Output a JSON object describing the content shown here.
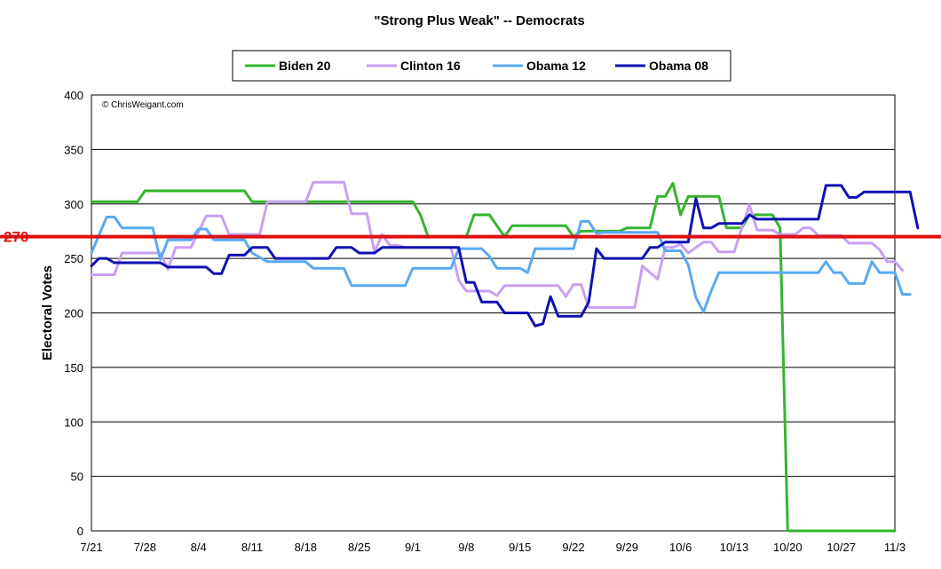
{
  "chart_data": {
    "type": "line",
    "title": "\"Strong Plus Weak\" -- Democrats",
    "ylabel": "Electoral Votes",
    "xlabel": "",
    "copyright": "© ChrisWeigant.com",
    "ylim": [
      0,
      400
    ],
    "yticks": [
      0,
      50,
      100,
      150,
      200,
      250,
      300,
      350,
      400
    ],
    "xlim": [
      0,
      105
    ],
    "xticks": [
      {
        "x": 0,
        "label": "7/21"
      },
      {
        "x": 7,
        "label": "7/28"
      },
      {
        "x": 14,
        "label": "8/4"
      },
      {
        "x": 21,
        "label": "8/11"
      },
      {
        "x": 28,
        "label": "8/18"
      },
      {
        "x": 35,
        "label": "8/25"
      },
      {
        "x": 42,
        "label": "9/1"
      },
      {
        "x": 49,
        "label": "9/8"
      },
      {
        "x": 56,
        "label": "9/15"
      },
      {
        "x": 63,
        "label": "9/22"
      },
      {
        "x": 70,
        "label": "9/29"
      },
      {
        "x": 77,
        "label": "10/6"
      },
      {
        "x": 84,
        "label": "10/13"
      },
      {
        "x": 91,
        "label": "10/20"
      },
      {
        "x": 98,
        "label": "10/27"
      },
      {
        "x": 105,
        "label": "11/3"
      }
    ],
    "grid": true,
    "legend_position": "top",
    "reference_line": {
      "value": 270,
      "label": "270",
      "color": "#dd1111"
    },
    "series": [
      {
        "name": "Biden 20",
        "color": "#33b52e",
        "points": [
          [
            0,
            302
          ],
          [
            6,
            302
          ],
          [
            7,
            312
          ],
          [
            20,
            312
          ],
          [
            21,
            302
          ],
          [
            42,
            302
          ],
          [
            43,
            290
          ],
          [
            44,
            270
          ],
          [
            48,
            270
          ],
          [
            49,
            270
          ],
          [
            50,
            290
          ],
          [
            52,
            290
          ],
          [
            54,
            270
          ],
          [
            55,
            280
          ],
          [
            62,
            280
          ],
          [
            63,
            270
          ],
          [
            64,
            275
          ],
          [
            69,
            275
          ],
          [
            70,
            278
          ],
          [
            73,
            278
          ],
          [
            74,
            307
          ],
          [
            75,
            307
          ],
          [
            76,
            319
          ],
          [
            77,
            290
          ],
          [
            78,
            307
          ],
          [
            82,
            307
          ],
          [
            83,
            278
          ],
          [
            85,
            278
          ],
          [
            86,
            290
          ],
          [
            89,
            290
          ],
          [
            90,
            278
          ],
          [
            91,
            0
          ],
          [
            105,
            0
          ]
        ]
      },
      {
        "name": "Clinton 16",
        "color": "#c99ff2",
        "points": [
          [
            0,
            235
          ],
          [
            3,
            235
          ],
          [
            4,
            255
          ],
          [
            9,
            255
          ],
          [
            10,
            240
          ],
          [
            11,
            260
          ],
          [
            13,
            260
          ],
          [
            15,
            289
          ],
          [
            17,
            289
          ],
          [
            18,
            272
          ],
          [
            22,
            272
          ],
          [
            23,
            302
          ],
          [
            28,
            302
          ],
          [
            29,
            320
          ],
          [
            33,
            320
          ],
          [
            34,
            291
          ],
          [
            36,
            291
          ],
          [
            37,
            256
          ],
          [
            38,
            272
          ],
          [
            39,
            262
          ],
          [
            40,
            262
          ],
          [
            41,
            260
          ],
          [
            47,
            260
          ],
          [
            48,
            230
          ],
          [
            49,
            220
          ],
          [
            52,
            220
          ],
          [
            53,
            216
          ],
          [
            54,
            225
          ],
          [
            61,
            225
          ],
          [
            62,
            215
          ],
          [
            63,
            226
          ],
          [
            64,
            226
          ],
          [
            65,
            205
          ],
          [
            71,
            205
          ],
          [
            72,
            243
          ],
          [
            74,
            231
          ],
          [
            75,
            260
          ],
          [
            76,
            260
          ],
          [
            77,
            263
          ],
          [
            78,
            255
          ],
          [
            80,
            265
          ],
          [
            81,
            265
          ],
          [
            82,
            256
          ],
          [
            84,
            256
          ],
          [
            85,
            278
          ],
          [
            86,
            299
          ],
          [
            87,
            276
          ],
          [
            89,
            276
          ],
          [
            90,
            272
          ],
          [
            92,
            272
          ],
          [
            93,
            278
          ],
          [
            94,
            278
          ],
          [
            95,
            271
          ],
          [
            98,
            271
          ],
          [
            99,
            264
          ],
          [
            102,
            264
          ],
          [
            103,
            258
          ],
          [
            104,
            247
          ],
          [
            105,
            247
          ],
          [
            106,
            239
          ]
        ]
      },
      {
        "name": "Obama 12",
        "color": "#5aa9f0",
        "points": [
          [
            0,
            255
          ],
          [
            2,
            288
          ],
          [
            3,
            288
          ],
          [
            4,
            278
          ],
          [
            8,
            278
          ],
          [
            9,
            249
          ],
          [
            10,
            267
          ],
          [
            13,
            267
          ],
          [
            14,
            277
          ],
          [
            15,
            277
          ],
          [
            16,
            267
          ],
          [
            20,
            267
          ],
          [
            21,
            255
          ],
          [
            23,
            247
          ],
          [
            28,
            247
          ],
          [
            29,
            241
          ],
          [
            33,
            241
          ],
          [
            34,
            225
          ],
          [
            41,
            225
          ],
          [
            42,
            241
          ],
          [
            47,
            241
          ],
          [
            48,
            259
          ],
          [
            51,
            259
          ],
          [
            52,
            252
          ],
          [
            53,
            241
          ],
          [
            56,
            241
          ],
          [
            57,
            237
          ],
          [
            58,
            259
          ],
          [
            63,
            259
          ],
          [
            64,
            284
          ],
          [
            65,
            284
          ],
          [
            66,
            273
          ],
          [
            67,
            274
          ],
          [
            73,
            274
          ],
          [
            74,
            274
          ],
          [
            75,
            257
          ],
          [
            77,
            257
          ],
          [
            78,
            244
          ],
          [
            79,
            214
          ],
          [
            80,
            201
          ],
          [
            81,
            220
          ],
          [
            82,
            237
          ],
          [
            95,
            237
          ],
          [
            96,
            247
          ],
          [
            97,
            237
          ],
          [
            98,
            237
          ],
          [
            99,
            227
          ],
          [
            101,
            227
          ],
          [
            102,
            247
          ],
          [
            103,
            237
          ],
          [
            105,
            237
          ],
          [
            106,
            217
          ],
          [
            107,
            217
          ]
        ]
      },
      {
        "name": "Obama 08",
        "color": "#1010b4",
        "points": [
          [
            0,
            243
          ],
          [
            1,
            250
          ],
          [
            2,
            250
          ],
          [
            3,
            246
          ],
          [
            9,
            246
          ],
          [
            10,
            242
          ],
          [
            15,
            242
          ],
          [
            16,
            236
          ],
          [
            17,
            236
          ],
          [
            18,
            253
          ],
          [
            20,
            253
          ],
          [
            21,
            260
          ],
          [
            23,
            260
          ],
          [
            24,
            250
          ],
          [
            31,
            250
          ],
          [
            32,
            260
          ],
          [
            34,
            260
          ],
          [
            35,
            255
          ],
          [
            37,
            255
          ],
          [
            38,
            260
          ],
          [
            48,
            260
          ],
          [
            49,
            228
          ],
          [
            50,
            228
          ],
          [
            51,
            210
          ],
          [
            53,
            210
          ],
          [
            54,
            200
          ],
          [
            57,
            200
          ],
          [
            58,
            188
          ],
          [
            59,
            190
          ],
          [
            60,
            215
          ],
          [
            61,
            197
          ],
          [
            64,
            197
          ],
          [
            65,
            210
          ],
          [
            66,
            259
          ],
          [
            67,
            250
          ],
          [
            71,
            250
          ],
          [
            72,
            250
          ],
          [
            73,
            260
          ],
          [
            74,
            260
          ],
          [
            75,
            265
          ],
          [
            78,
            265
          ],
          [
            79,
            305
          ],
          [
            80,
            278
          ],
          [
            81,
            278
          ],
          [
            82,
            282
          ],
          [
            85,
            282
          ],
          [
            86,
            290
          ],
          [
            87,
            286
          ],
          [
            95,
            286
          ],
          [
            96,
            317
          ],
          [
            98,
            317
          ],
          [
            99,
            306
          ],
          [
            100,
            306
          ],
          [
            101,
            311
          ],
          [
            107,
            311
          ],
          [
            108,
            278
          ]
        ]
      }
    ]
  }
}
